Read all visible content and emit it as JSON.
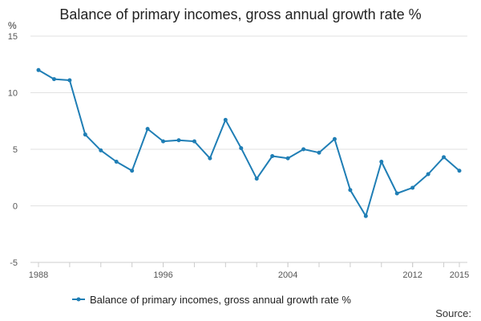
{
  "chart_data": {
    "type": "line",
    "title": "Balance of primary incomes, gross annual growth rate %",
    "y_unit_label": "%",
    "source_label": "Source:",
    "ylim": [
      -5,
      15
    ],
    "y_ticks": [
      15,
      10,
      5,
      0,
      -5
    ],
    "xlim": [
      1988,
      2015
    ],
    "x_ticks": [
      1988,
      1996,
      2004,
      2012,
      2015
    ],
    "grid": "horizontal",
    "legend_position": "bottom",
    "series": [
      {
        "name": "Balance of primary incomes, gross annual growth rate %",
        "color": "#1f7eb5",
        "x": [
          1988,
          1989,
          1990,
          1991,
          1992,
          1993,
          1994,
          1995,
          1996,
          1997,
          1998,
          1999,
          2000,
          2001,
          2002,
          2003,
          2004,
          2005,
          2006,
          2007,
          2008,
          2009,
          2010,
          2011,
          2012,
          2013,
          2014,
          2015
        ],
        "values": [
          12.0,
          11.2,
          11.1,
          6.3,
          4.9,
          3.9,
          3.1,
          6.8,
          5.7,
          5.8,
          5.7,
          4.2,
          7.6,
          5.1,
          2.4,
          4.4,
          4.2,
          5.0,
          4.7,
          5.9,
          1.4,
          -0.9,
          3.9,
          1.1,
          1.6,
          2.8,
          4.3,
          3.1
        ]
      }
    ]
  }
}
